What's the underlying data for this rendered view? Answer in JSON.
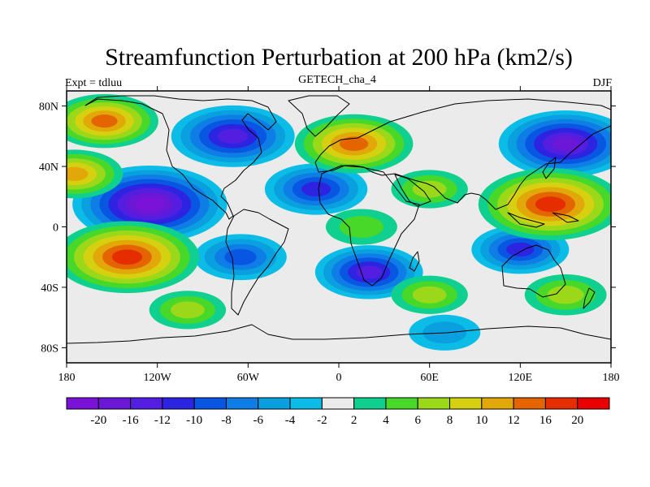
{
  "title": "Streamfunction Perturbation at 200 hPa (km2/s)",
  "left_label": "Expt = tdluu",
  "center_label": "GETECH_cha_4",
  "right_label": "DJF",
  "lat_ticks": [
    "80N",
    "40N",
    "0",
    "40S",
    "80S"
  ],
  "lon_ticks": [
    "180",
    "120W",
    "60W",
    "0",
    "60E",
    "120E",
    "180"
  ],
  "colorbar": {
    "colors": [
      "#7a12d8",
      "#6a17d6",
      "#531ee0",
      "#2c24e0",
      "#0856e2",
      "#0e7ee6",
      "#0aa0e0",
      "#0bbde6",
      "#ebebeb",
      "#0fd08e",
      "#47d82a",
      "#9bd81a",
      "#d6d110",
      "#e2a708",
      "#e46500",
      "#e52d00",
      "#e90000"
    ],
    "labels": [
      "-20",
      "-16",
      "-12",
      "-10",
      "-8",
      "-6",
      "-4",
      "-2",
      "2",
      "4",
      "6",
      "8",
      "10",
      "12",
      "16",
      "20"
    ]
  },
  "field_centers": [
    {
      "lon": -125,
      "lat": 15,
      "value": -21
    },
    {
      "lon": -70,
      "lat": 60,
      "value": -15
    },
    {
      "lon": 150,
      "lat": 55,
      "value": -17
    },
    {
      "lon": -15,
      "lat": 25,
      "value": -11
    },
    {
      "lon": 20,
      "lat": -30,
      "value": -12
    },
    {
      "lon": 120,
      "lat": -15,
      "value": -10
    },
    {
      "lon": -65,
      "lat": -20,
      "value": -9
    },
    {
      "lon": 70,
      "lat": -70,
      "value": -5
    },
    {
      "lon": -140,
      "lat": -20,
      "value": 19
    },
    {
      "lon": 140,
      "lat": 15,
      "value": 19
    },
    {
      "lon": 10,
      "lat": 55,
      "value": 14
    },
    {
      "lon": -155,
      "lat": 70,
      "value": 12
    },
    {
      "lon": -175,
      "lat": 35,
      "value": 10
    },
    {
      "lon": 60,
      "lat": 25,
      "value": 6
    },
    {
      "lon": -100,
      "lat": -55,
      "value": 6
    },
    {
      "lon": 150,
      "lat": -45,
      "value": 7
    },
    {
      "lon": 15,
      "lat": 0,
      "value": 5
    },
    {
      "lon": 60,
      "lat": -45,
      "value": 6
    }
  ]
}
